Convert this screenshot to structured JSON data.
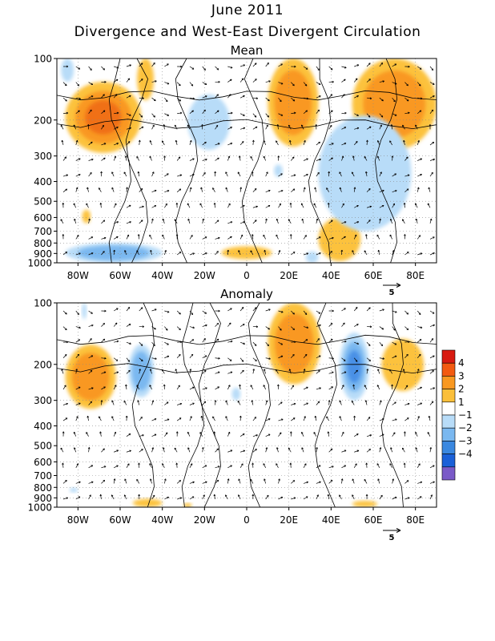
{
  "header": {
    "title_line1": "June 2011",
    "title_line2": "Divergence and West-East Divergent Circulation"
  },
  "chart_data": [
    {
      "type": "heatmap",
      "title": "Mean",
      "x_ticks": [
        "80W",
        "60W",
        "40W",
        "20W",
        "0",
        "20E",
        "40E",
        "60E",
        "80E"
      ],
      "x_tick_values": [
        -80,
        -60,
        -40,
        -20,
        0,
        20,
        40,
        60,
        80
      ],
      "xlim": [
        -90,
        90
      ],
      "y_ticks": [
        "100",
        "200",
        "300",
        "400",
        "500",
        "600",
        "700",
        "800",
        "900",
        "1000"
      ],
      "y_tick_values": [
        100,
        200,
        300,
        400,
        500,
        600,
        700,
        800,
        900,
        1000
      ],
      "ylim": [
        1000,
        100
      ],
      "yscale": "log-pressure",
      "vector_ref": "5",
      "positive_regions": [
        {
          "lon": [
            -86,
            -50
          ],
          "p": [
            130,
            290
          ],
          "peak": 3.4
        },
        {
          "lon": [
            -52,
            -44
          ],
          "p": [
            100,
            160
          ],
          "peak": 1.5
        },
        {
          "lon": [
            10,
            34
          ],
          "p": [
            100,
            270
          ],
          "peak": 2.5
        },
        {
          "lon": [
            50,
            90
          ],
          "p": [
            100,
            280
          ],
          "peak": 2.5
        },
        {
          "lon": [
            -78,
            -74
          ],
          "p": [
            550,
            640
          ],
          "peak": 1.2
        },
        {
          "lon": [
            -12,
            12
          ],
          "p": [
            830,
            960
          ],
          "peak": 1.5
        },
        {
          "lon": [
            34,
            54
          ],
          "p": [
            600,
            980
          ],
          "peak": 1.5
        }
      ],
      "negative_regions": [
        {
          "lon": [
            -88,
            -82
          ],
          "p": [
            100,
            130
          ],
          "peak": -1.5
        },
        {
          "lon": [
            -28,
            -8
          ],
          "p": [
            150,
            280
          ],
          "peak": -1.4
        },
        {
          "lon": [
            13,
            17
          ],
          "p": [
            330,
            380
          ],
          "peak": -1.2
        },
        {
          "lon": [
            34,
            78
          ],
          "p": [
            190,
            700
          ],
          "peak": -1.5
        },
        {
          "lon": [
            -86,
            -40
          ],
          "p": [
            800,
            1000
          ],
          "peak": -2.5
        },
        {
          "lon": [
            28,
            34
          ],
          "p": [
            880,
            1000
          ],
          "peak": -1.5
        }
      ]
    },
    {
      "type": "heatmap",
      "title": "Anomaly",
      "x_ticks": [
        "80W",
        "60W",
        "40W",
        "20W",
        "0",
        "20E",
        "40E",
        "60E",
        "80E"
      ],
      "x_tick_values": [
        -80,
        -60,
        -40,
        -20,
        0,
        20,
        40,
        60,
        80
      ],
      "xlim": [
        -90,
        90
      ],
      "y_ticks": [
        "100",
        "200",
        "300",
        "400",
        "500",
        "600",
        "700",
        "800",
        "900",
        "1000"
      ],
      "y_tick_values": [
        100,
        200,
        300,
        400,
        500,
        600,
        700,
        800,
        900,
        1000
      ],
      "ylim": [
        1000,
        100
      ],
      "yscale": "log-pressure",
      "vector_ref": "5",
      "positive_regions": [
        {
          "lon": [
            -86,
            -62
          ],
          "p": [
            160,
            330
          ],
          "peak": 2.5
        },
        {
          "lon": [
            10,
            35
          ],
          "p": [
            100,
            250
          ],
          "peak": 2.0
        },
        {
          "lon": [
            64,
            84
          ],
          "p": [
            150,
            270
          ],
          "peak": 1.5
        },
        {
          "lon": [
            -54,
            -40
          ],
          "p": [
            910,
            1000
          ],
          "peak": 1.2
        },
        {
          "lon": [
            -30,
            -26
          ],
          "p": [
            960,
            1000
          ],
          "peak": 1.1
        },
        {
          "lon": [
            50,
            62
          ],
          "p": [
            930,
            1000
          ],
          "peak": 1.5
        }
      ],
      "negative_regions": [
        {
          "lon": [
            -56,
            -44
          ],
          "p": [
            160,
            290
          ],
          "peak": -2.3
        },
        {
          "lon": [
            -7,
            -3
          ],
          "p": [
            260,
            300
          ],
          "peak": -1.2
        },
        {
          "lon": [
            44,
            58
          ],
          "p": [
            140,
            300
          ],
          "peak": -3.0
        },
        {
          "lon": [
            -84,
            -80
          ],
          "p": [
            810,
            840
          ],
          "peak": -1.1
        },
        {
          "lon": [
            -78,
            -76
          ],
          "p": [
            100,
            120
          ],
          "peak": -1.1
        }
      ]
    }
  ],
  "colorbar": {
    "labels": [
      "4",
      "3",
      "2",
      "1",
      "−1",
      "−2",
      "−3",
      "−4"
    ],
    "colors": [
      "#d81a10",
      "#f35a10",
      "#f99820",
      "#fbbf3a",
      "#ffffff",
      "#b8dcf8",
      "#7ab8f0",
      "#3a88e0",
      "#1a60d8",
      "#7a5ac8"
    ]
  },
  "colors": {
    "pos": [
      "#fcc23e",
      "#f99820",
      "#f07018",
      "#e04818"
    ],
    "neg": [
      "#b8dcf8",
      "#7ab8f0",
      "#4a90e6",
      "#2a60d0"
    ]
  }
}
